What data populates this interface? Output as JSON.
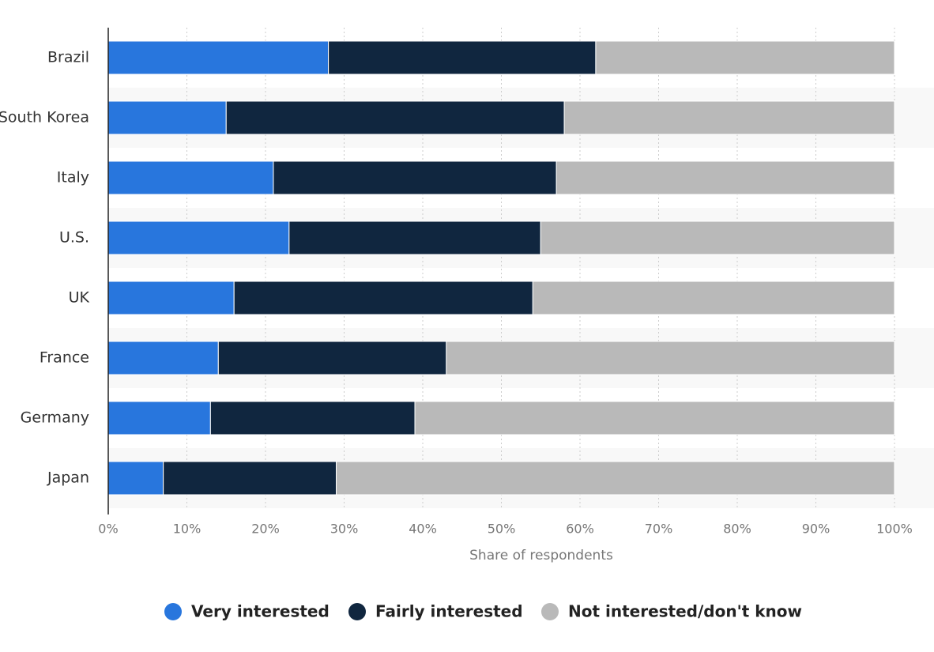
{
  "chart_data": {
    "type": "stacked-bar-horizontal",
    "x_label": "Share of respondents",
    "categories": [
      "Brazil",
      "South Korea",
      "Italy",
      "U.S.",
      "UK",
      "France",
      "Germany",
      "Japan"
    ],
    "series": [
      {
        "name": "Very interested",
        "color": "#2876dd",
        "values": [
          28,
          15,
          21,
          23,
          16,
          14,
          13,
          7
        ]
      },
      {
        "name": "Fairly interested",
        "color": "#10263f",
        "values": [
          34,
          43,
          36,
          32,
          38,
          29,
          26,
          22
        ]
      },
      {
        "name": "Not interested/don't know",
        "color": "#b9b9b9",
        "values": [
          38,
          42,
          43,
          45,
          46,
          57,
          61,
          71
        ]
      }
    ],
    "xlim": [
      0,
      100
    ],
    "xticks": [
      {
        "value": 0,
        "label": "0%"
      },
      {
        "value": 10,
        "label": "10%"
      },
      {
        "value": 20,
        "label": "20%"
      },
      {
        "value": 30,
        "label": "30%"
      },
      {
        "value": 40,
        "label": "40%"
      },
      {
        "value": 50,
        "label": "50%"
      },
      {
        "value": 60,
        "label": "60%"
      },
      {
        "value": 70,
        "label": "70%"
      },
      {
        "value": 80,
        "label": "80%"
      },
      {
        "value": 90,
        "label": "90%"
      },
      {
        "value": 100,
        "label": "100%"
      }
    ],
    "grid": true
  }
}
